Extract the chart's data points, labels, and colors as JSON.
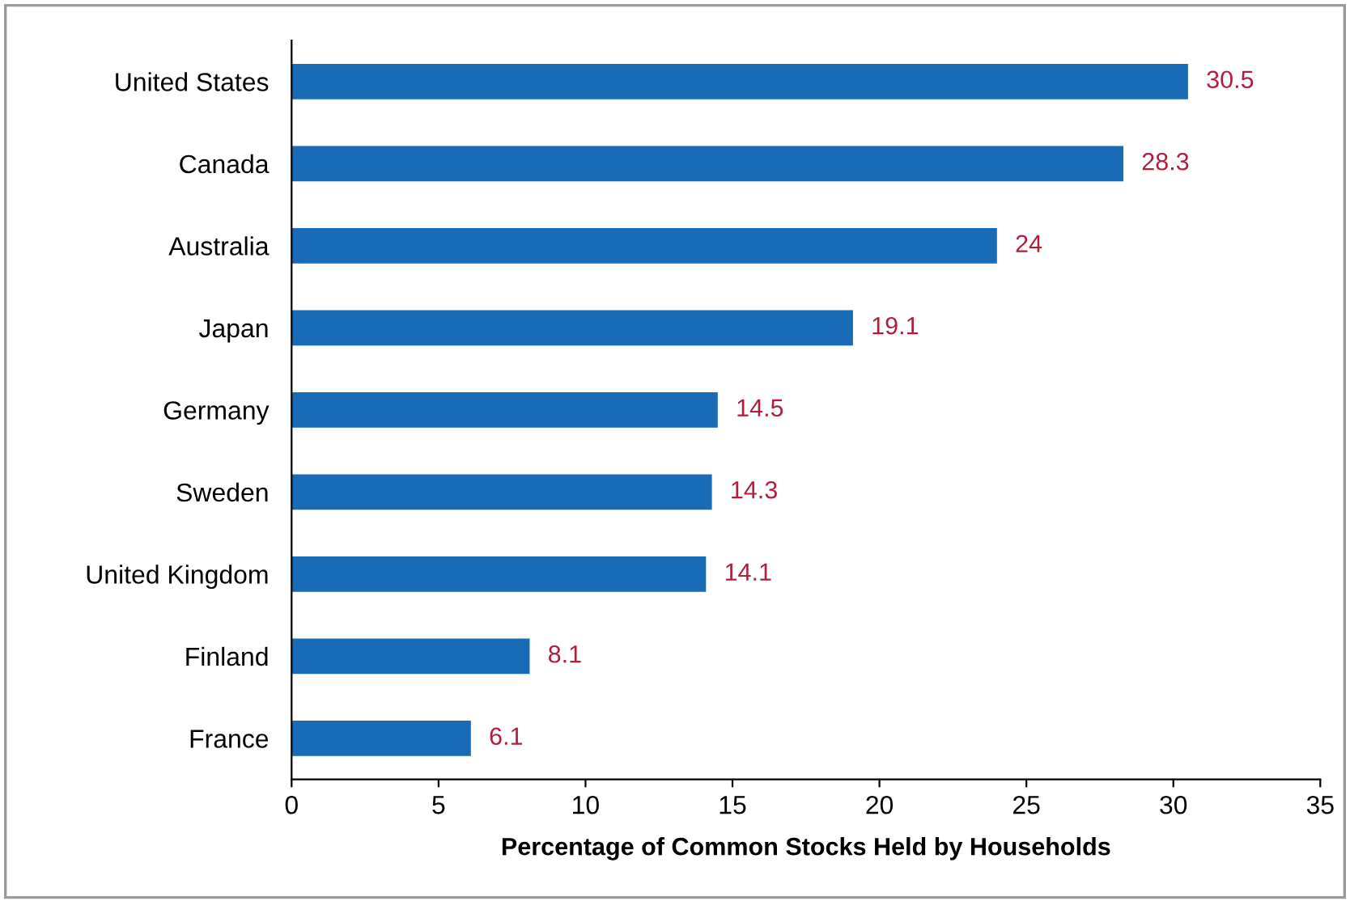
{
  "chart_data": {
    "type": "bar",
    "orientation": "horizontal",
    "xlabel": "Percentage of Common Stocks Held by Households",
    "categories": [
      "United States",
      "Canada",
      "Australia",
      "Japan",
      "Germany",
      "Sweden",
      "United Kingdom",
      "Finland",
      "France"
    ],
    "values": [
      30.5,
      28.3,
      24,
      19.1,
      14.5,
      14.3,
      14.1,
      8.1,
      6.1
    ],
    "color": "#1a6bb5",
    "data_labels": true,
    "xlim": [
      0,
      35
    ],
    "xticks": [
      0,
      5,
      10,
      15,
      20,
      25,
      30,
      35
    ],
    "grid": false,
    "legend": false
  }
}
